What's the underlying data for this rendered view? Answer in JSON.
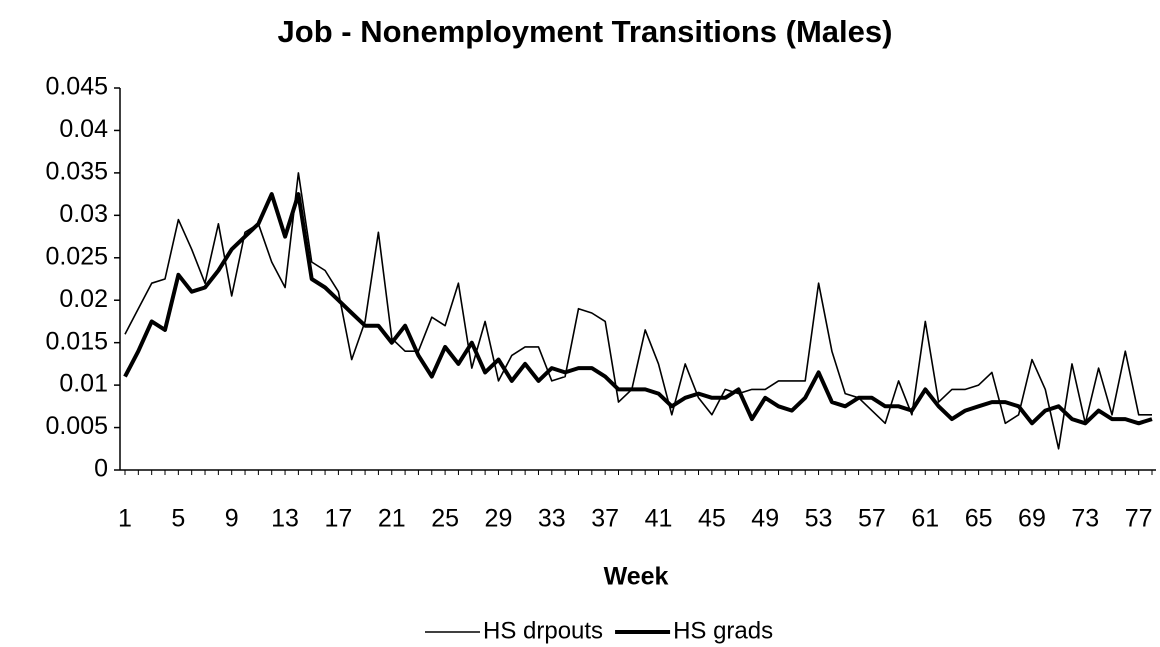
{
  "chart_data": {
    "type": "line",
    "title": "Job - Nonemployment Transitions (Males)",
    "x_label": "Week",
    "categories": [
      "1",
      null,
      null,
      null,
      "5",
      null,
      null,
      null,
      "9",
      null,
      null,
      null,
      "13",
      null,
      null,
      null,
      "17",
      null,
      null,
      null,
      "21",
      null,
      null,
      null,
      "25",
      null,
      null,
      null,
      "29",
      null,
      null,
      null,
      "33",
      null,
      null,
      null,
      "37",
      null,
      null,
      null,
      "41",
      null,
      null,
      null,
      "45",
      null,
      null,
      null,
      "49",
      null,
      null,
      null,
      "53",
      null,
      null,
      null,
      "57",
      null,
      null,
      null,
      "61",
      null,
      null,
      null,
      "65",
      null,
      null,
      null,
      "69",
      null,
      null,
      null,
      "73",
      null,
      null,
      null,
      "77",
      null
    ],
    "series": [
      {
        "name": "HS drpouts",
        "color": "#000000",
        "values": [
          0.016,
          0.019,
          0.022,
          0.0225,
          0.0295,
          0.026,
          0.022,
          0.029,
          0.0205,
          0.028,
          0.029,
          0.0245,
          0.0215,
          0.035,
          0.0245,
          0.0235,
          0.021,
          0.013,
          0.0175,
          0.028,
          0.0155,
          0.014,
          0.014,
          0.018,
          0.017,
          0.022,
          0.012,
          0.0175,
          0.0105,
          0.0135,
          0.0145,
          0.0145,
          0.0105,
          0.011,
          0.019,
          0.0185,
          0.0175,
          0.008,
          0.0095,
          0.0165,
          0.0125,
          0.0065,
          0.0125,
          0.0085,
          0.0065,
          0.0095,
          0.009,
          0.0095,
          0.0095,
          0.0105,
          0.0105,
          0.0105,
          0.022,
          0.014,
          0.009,
          0.0085,
          0.007,
          0.0055,
          0.0105,
          0.0065,
          0.0175,
          0.008,
          0.0095,
          0.0095,
          0.01,
          0.0115,
          0.0055,
          0.0065,
          0.013,
          0.0095,
          0.0025,
          0.0125,
          0.0055,
          0.012,
          0.0065,
          0.014,
          0.0065,
          0.0065
        ]
      },
      {
        "name": "HS grads",
        "color": "#000000",
        "values": [
          0.011,
          0.014,
          0.0175,
          0.0165,
          0.023,
          0.021,
          0.0215,
          0.0235,
          0.026,
          0.0275,
          0.029,
          0.0325,
          0.0275,
          0.0325,
          0.0225,
          0.0215,
          0.02,
          0.0185,
          0.017,
          0.017,
          0.015,
          0.017,
          0.0135,
          0.011,
          0.0145,
          0.0125,
          0.015,
          0.0115,
          0.013,
          0.0105,
          0.0125,
          0.0105,
          0.012,
          0.0115,
          0.012,
          0.012,
          0.011,
          0.0095,
          0.0095,
          0.0095,
          0.009,
          0.0075,
          0.0085,
          0.009,
          0.0085,
          0.0085,
          0.0095,
          0.006,
          0.0085,
          0.0075,
          0.007,
          0.0085,
          0.0115,
          0.008,
          0.0075,
          0.0085,
          0.0085,
          0.0075,
          0.0075,
          0.007,
          0.0095,
          0.0075,
          0.006,
          0.007,
          0.0075,
          0.008,
          0.008,
          0.0075,
          0.0055,
          0.007,
          0.0075,
          0.006,
          0.0055,
          0.007,
          0.006,
          0.006,
          0.0055,
          0.006
        ]
      }
    ],
    "ylim": [
      0,
      0.045
    ],
    "yticks": [
      0,
      0.005,
      0.01,
      0.015,
      0.02,
      0.025,
      0.03,
      0.035,
      0.04,
      0.045
    ],
    "legend": "bottom"
  }
}
